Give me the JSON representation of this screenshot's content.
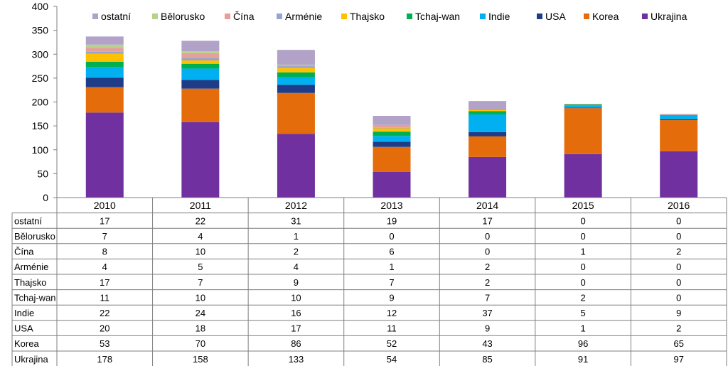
{
  "chart_data": {
    "type": "bar",
    "stacked": true,
    "categories": [
      "2010",
      "2011",
      "2012",
      "2013",
      "2014",
      "2015",
      "2016"
    ],
    "ylim": [
      0,
      400
    ],
    "yticks": [
      0,
      50,
      100,
      150,
      200,
      250,
      300,
      350,
      400
    ],
    "title": "",
    "xlabel": "",
    "ylabel": "",
    "grid": false,
    "legend_position": "top",
    "series": [
      {
        "name": "Ukrajina",
        "color": "#7030A0",
        "values": [
          178,
          158,
          133,
          54,
          85,
          91,
          97
        ]
      },
      {
        "name": "Korea",
        "color": "#E46C0A",
        "values": [
          53,
          70,
          86,
          52,
          43,
          96,
          65
        ]
      },
      {
        "name": "USA",
        "color": "#1F3C88",
        "values": [
          20,
          18,
          17,
          11,
          9,
          1,
          2
        ]
      },
      {
        "name": "Indie",
        "color": "#00B0F0",
        "values": [
          22,
          24,
          16,
          12,
          37,
          5,
          9
        ]
      },
      {
        "name": "Tchaj-wan",
        "color": "#00B050",
        "values": [
          11,
          10,
          10,
          9,
          7,
          2,
          0
        ]
      },
      {
        "name": "Thajsko",
        "color": "#FFC000",
        "values": [
          17,
          7,
          9,
          7,
          2,
          0,
          0
        ]
      },
      {
        "name": "Arménie",
        "color": "#95A5CF",
        "values": [
          4,
          5,
          4,
          1,
          2,
          0,
          0
        ]
      },
      {
        "name": "Čína",
        "color": "#E6A09C",
        "values": [
          8,
          10,
          2,
          6,
          0,
          1,
          2
        ]
      },
      {
        "name": "Bělorusko",
        "color": "#B5D38B",
        "values": [
          7,
          4,
          1,
          0,
          0,
          0,
          0
        ]
      },
      {
        "name": "ostatní",
        "color": "#B2A2C7",
        "values": [
          17,
          22,
          31,
          19,
          17,
          0,
          0
        ]
      }
    ],
    "legend_order": [
      "ostatní",
      "Bělorusko",
      "Čína",
      "Arménie",
      "Thajsko",
      "Tchaj-wan",
      "Indie",
      "USA",
      "Korea",
      "Ukrajina"
    ],
    "table_row_order": [
      "ostatní",
      "Bělorusko",
      "Čína",
      "Arménie",
      "Thajsko",
      "Tchaj-wan",
      "Indie",
      "USA",
      "Korea",
      "Ukrajina"
    ]
  }
}
